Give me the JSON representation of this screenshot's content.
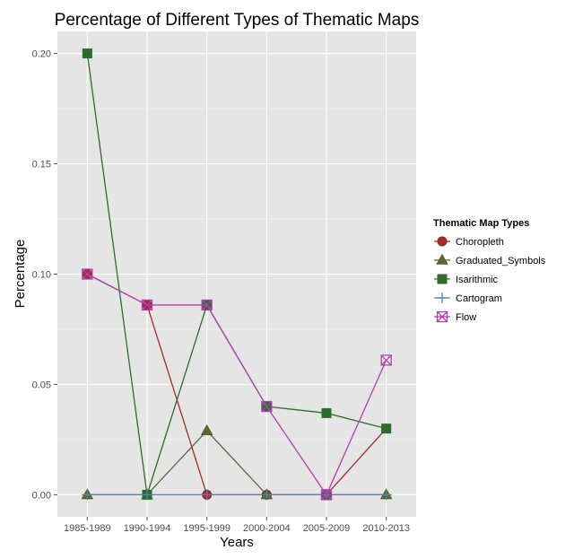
{
  "chart_data": {
    "type": "line",
    "title": "Percentage of Different Types of Thematic Maps",
    "xlabel": "Years",
    "ylabel": "Percentage",
    "categories": [
      "1985-1989",
      "1990-1994",
      "1995-1999",
      "2000-2004",
      "2005-2009",
      "2010-2013"
    ],
    "ylim": [
      -0.01,
      0.21
    ],
    "yticks": [
      0.0,
      0.05,
      0.1,
      0.15,
      0.2
    ],
    "ytick_labels": [
      "0.00",
      "0.05",
      "0.10",
      "0.15",
      "0.20"
    ],
    "grid": true,
    "legend": {
      "title": "Thematic Map Types",
      "position": "right"
    },
    "series": [
      {
        "name": "Choropleth",
        "color": "#a52a2a",
        "marker": "circle",
        "values": [
          0.1,
          0.086,
          0.0,
          0.0,
          0.0,
          0.03
        ]
      },
      {
        "name": "Graduated_Symbols",
        "color": "#556b2f",
        "marker": "triangle",
        "values": [
          0.0,
          0.0,
          0.029,
          0.0,
          0.0,
          0.0
        ]
      },
      {
        "name": "Isarithmic",
        "color": "#2e6b2e",
        "marker": "square",
        "values": [
          0.2,
          0.0,
          0.086,
          0.04,
          0.037,
          0.03
        ]
      },
      {
        "name": "Cartogram",
        "color": "#4f81bd",
        "marker": "plus",
        "values": [
          0.0,
          0.0,
          0.0,
          0.0,
          0.0,
          0.0
        ]
      },
      {
        "name": "Flow",
        "color": "#b040b0",
        "marker": "boxx",
        "values": [
          0.1,
          0.086,
          0.086,
          0.04,
          0.0,
          0.061
        ]
      }
    ]
  }
}
